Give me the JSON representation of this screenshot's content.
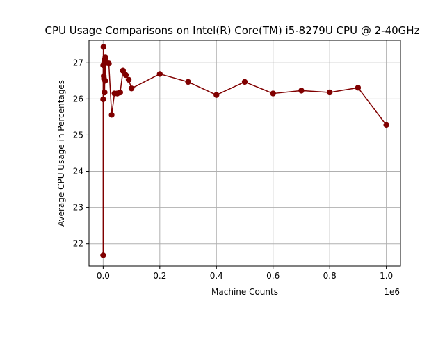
{
  "chart_data": {
    "type": "line",
    "title": "CPU Usage Comparisons on Intel(R) Core(TM) i5-8279U CPU @ 2-40GHz",
    "xlabel": "Machine Counts",
    "ylabel": "Average CPU Usage in Percentages",
    "x_offset_label": "1e6",
    "xlim": [
      -50000,
      1050000
    ],
    "ylim": [
      21.38,
      27.62
    ],
    "x_ticks": [
      0,
      200000,
      400000,
      600000,
      800000,
      1000000
    ],
    "x_tick_labels": [
      "0.0",
      "0.2",
      "0.4",
      "0.6",
      "0.8",
      "1.0"
    ],
    "y_ticks": [
      22,
      23,
      24,
      25,
      26,
      27
    ],
    "y_tick_labels": [
      "22",
      "23",
      "24",
      "25",
      "26",
      "27"
    ],
    "grid": true,
    "series": [
      {
        "color": "#800000",
        "marker": "circle",
        "x": [
          1,
          10,
          100,
          1000,
          2000,
          3000,
          4000,
          5000,
          6000,
          7000,
          8000,
          9000,
          10000,
          20000,
          30000,
          40000,
          50000,
          60000,
          70000,
          80000,
          90000,
          100000,
          200000,
          300000,
          400000,
          500000,
          600000,
          700000,
          800000,
          900000,
          1000000
        ],
        "y": [
          21.68,
          25.99,
          26.93,
          27.44,
          26.63,
          26.56,
          27.02,
          26.18,
          27.1,
          26.5,
          27.15,
          26.99,
          27.02,
          26.98,
          25.56,
          26.15,
          26.15,
          26.18,
          26.78,
          26.66,
          26.53,
          26.29,
          26.69,
          26.47,
          26.11,
          26.47,
          26.15,
          26.23,
          26.18,
          26.31,
          25.28
        ]
      }
    ]
  }
}
